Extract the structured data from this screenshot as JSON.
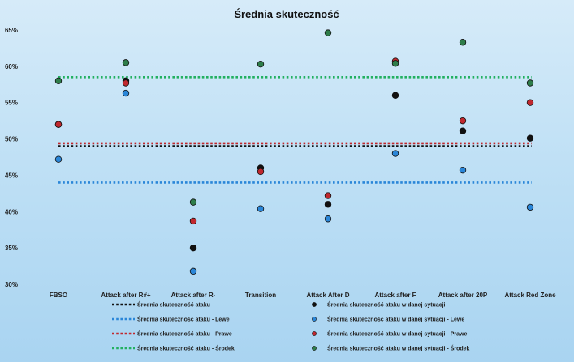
{
  "chart_data": {
    "type": "scatter",
    "title": "Średnia skuteczność",
    "xlabel": "",
    "ylabel": "",
    "categories": [
      "FBSO",
      "Attack after R#+",
      "Attack after R-",
      "Transition",
      "Attack After D",
      "Attack after F",
      "Attack after 20P",
      "Attack Red Zone"
    ],
    "ylim": [
      0.3,
      0.65
    ],
    "yticks": [
      0.3,
      0.35,
      0.4,
      0.45,
      0.5,
      0.55,
      0.6,
      0.65
    ],
    "ytick_labels": [
      "30%",
      "35%",
      "40%",
      "45%",
      "50%",
      "55%",
      "60%",
      "65%"
    ],
    "grid": false,
    "legend_position": "bottom",
    "averages": [
      {
        "name": "Średnia skuteczność ataku",
        "value": 0.49,
        "color": "#111111"
      },
      {
        "name": "Średnia skuteczność ataku - Lewe",
        "value": 0.44,
        "color": "#2a86d8"
      },
      {
        "name": "Średnia skuteczność ataku - Prawe",
        "value": 0.494,
        "color": "#c0282e"
      },
      {
        "name": "Średnia skuteczność ataku - Środek",
        "value": 0.585,
        "color": "#22b060"
      }
    ],
    "series": [
      {
        "name": "Średnia skuteczność ataku w danej sytuacji",
        "color": "#111111",
        "values": [
          0.52,
          0.58,
          0.35,
          0.46,
          0.41,
          0.56,
          0.511,
          0.501
        ]
      },
      {
        "name": "Średnia skuteczność ataku w danej sytuacji - Lewe",
        "color": "#2a86d8",
        "values": [
          0.472,
          0.563,
          0.318,
          0.404,
          0.39,
          0.48,
          0.457,
          0.406
        ]
      },
      {
        "name": "Średnia skuteczność ataku w danej sytuacji - Prawe",
        "color": "#c0282e",
        "values": [
          0.52,
          0.577,
          0.387,
          0.455,
          0.422,
          0.607,
          0.525,
          0.55
        ]
      },
      {
        "name": "Średnia skuteczność ataku w danej sytuacji - Środek",
        "color": "#2e7d4a",
        "values": [
          0.58,
          0.605,
          0.413,
          0.603,
          0.646,
          0.604,
          0.633,
          0.577
        ]
      }
    ]
  }
}
